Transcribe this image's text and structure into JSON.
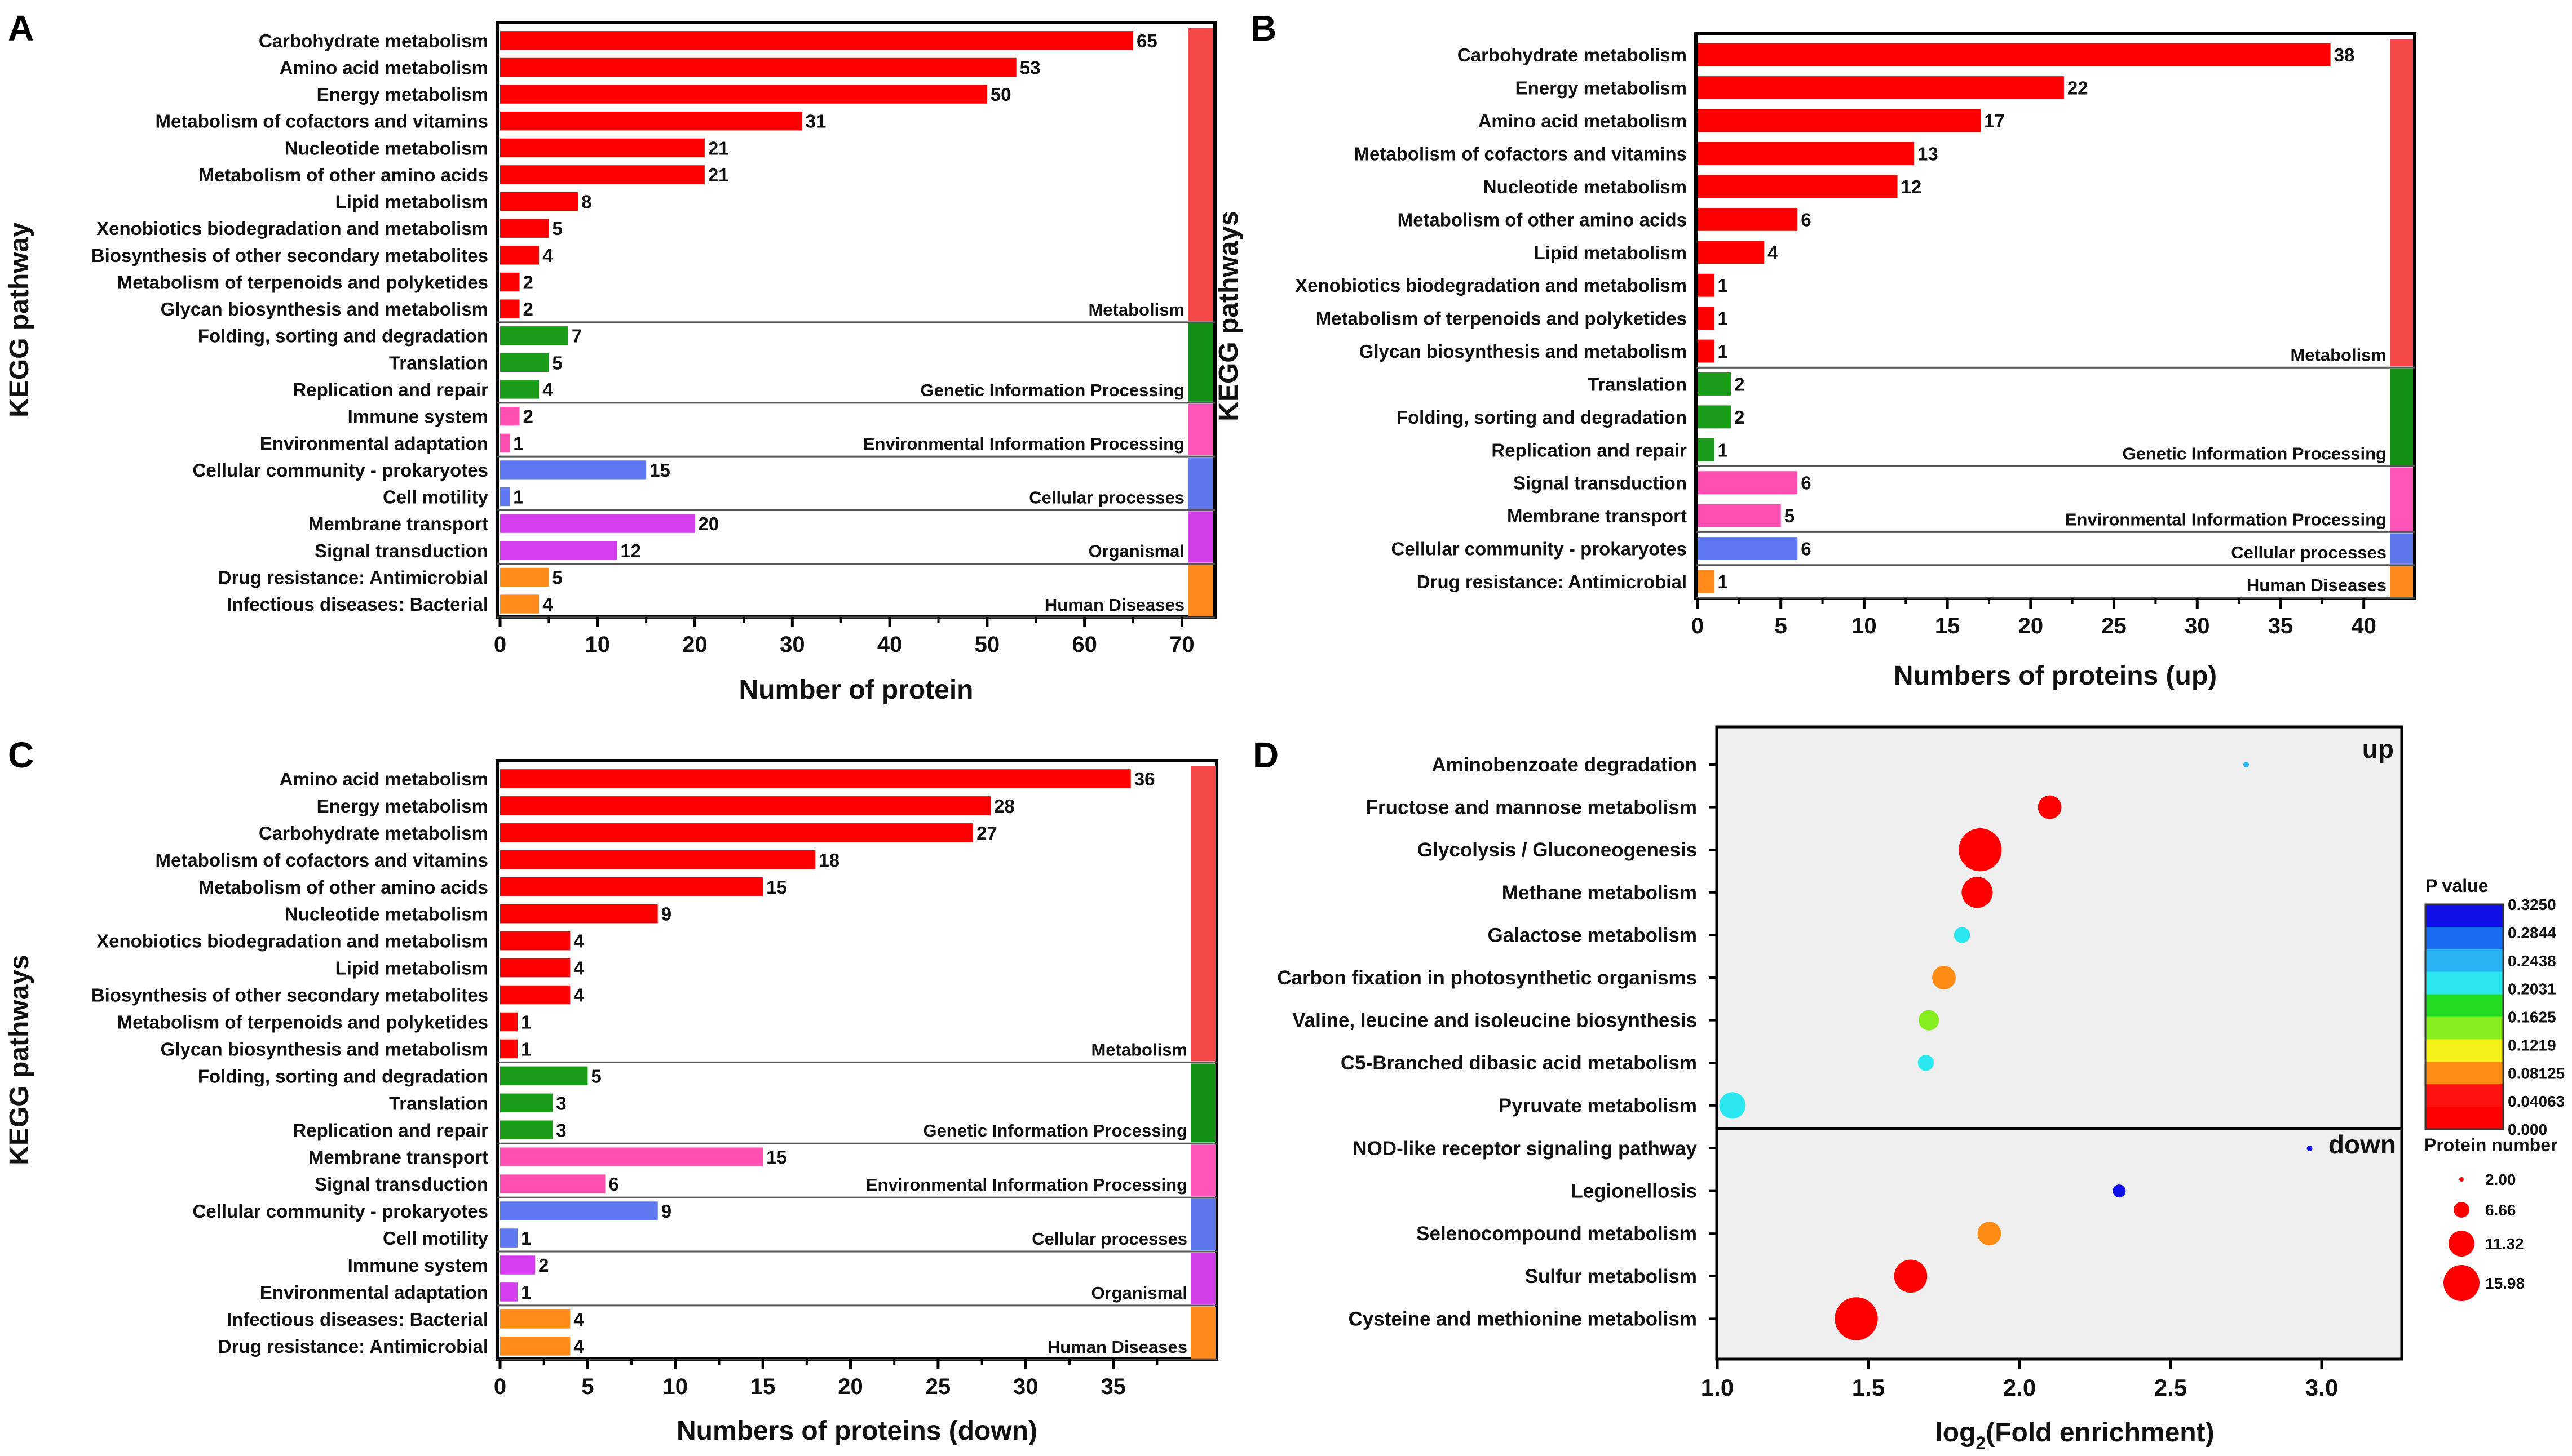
{
  "colors": {
    "Metabolism": "#ff0000",
    "Genetic Information Processing": "#1a9c1a",
    "Environmental Information Processing": "#ff4fb1",
    "Cellular processes": "#5e78f2",
    "Organismal": "#d63ff0",
    "Human Diseases": "#ff8c1a",
    "stripe_Metabolism": "#f64a4a",
    "stripe_Genetic Information Processing": "#139013",
    "stripe_Environmental Information Processing": "#ff55b8",
    "stripe_Cellular processes": "#5d77ea",
    "stripe_Organismal": "#d23ee8",
    "stripe_Human Diseases": "#ff8a1c",
    "dot_panel_bg": "#efefef"
  },
  "chart_data": [
    {
      "panel": "A",
      "type": "bar",
      "orientation": "horizontal",
      "xlabel": "Number of protein",
      "ylabel": "KEGG pathway",
      "xlim": [
        0,
        72
      ],
      "xticks": [
        0,
        10,
        20,
        30,
        40,
        50,
        60,
        70
      ],
      "groups": [
        {
          "name": "Metabolism",
          "items": [
            [
              "Carbohydrate metabolism",
              65
            ],
            [
              "Amino acid metabolism",
              53
            ],
            [
              "Energy metabolism",
              50
            ],
            [
              "Metabolism of cofactors and vitamins",
              31
            ],
            [
              "Nucleotide metabolism",
              21
            ],
            [
              "Metabolism of other amino acids",
              21
            ],
            [
              "Lipid metabolism",
              8
            ],
            [
              "Xenobiotics biodegradation and metabolism",
              5
            ],
            [
              "Biosynthesis of other secondary metabolites",
              4
            ],
            [
              "Metabolism of terpenoids and polyketides",
              2
            ],
            [
              "Glycan biosynthesis and metabolism",
              2
            ]
          ]
        },
        {
          "name": "Genetic Information Processing",
          "items": [
            [
              "Folding, sorting and degradation",
              7
            ],
            [
              "Translation",
              5
            ],
            [
              "Replication and repair",
              4
            ]
          ]
        },
        {
          "name": "Environmental Information Processing",
          "items": [
            [
              "Immune system",
              2
            ],
            [
              "Environmental adaptation",
              1
            ]
          ]
        },
        {
          "name": "Cellular processes",
          "items": [
            [
              "Cellular community - prokaryotes",
              15
            ],
            [
              "Cell motility",
              1
            ]
          ]
        },
        {
          "name": "Organismal",
          "items": [
            [
              "Membrane transport",
              20
            ],
            [
              "Signal transduction",
              12
            ]
          ]
        },
        {
          "name": "Human Diseases",
          "items": [
            [
              "Drug resistance: Antimicrobial",
              5
            ],
            [
              "Infectious diseases: Bacterial",
              4
            ]
          ]
        }
      ]
    },
    {
      "panel": "B",
      "type": "bar",
      "orientation": "horizontal",
      "xlabel": "Numbers of proteins (up)",
      "ylabel": "KEGG pathways",
      "xlim": [
        0,
        41.5
      ],
      "xticks": [
        0,
        5,
        10,
        15,
        20,
        25,
        30,
        35,
        40
      ],
      "groups": [
        {
          "name": "Metabolism",
          "items": [
            [
              "Carbohydrate metabolism",
              38
            ],
            [
              "Energy metabolism",
              22
            ],
            [
              "Amino acid metabolism",
              17
            ],
            [
              "Metabolism of cofactors and vitamins",
              13
            ],
            [
              "Nucleotide metabolism",
              12
            ],
            [
              "Metabolism of other amino acids",
              6
            ],
            [
              "Lipid metabolism",
              4
            ],
            [
              "Xenobiotics biodegradation and metabolism",
              1
            ],
            [
              "Metabolism of terpenoids and polyketides",
              1
            ],
            [
              "Glycan biosynthesis and metabolism",
              1
            ]
          ]
        },
        {
          "name": "Genetic Information Processing",
          "items": [
            [
              "Translation",
              2
            ],
            [
              "Folding, sorting and degradation",
              2
            ],
            [
              "Replication and repair",
              1
            ]
          ]
        },
        {
          "name": "Environmental Information Processing",
          "items": [
            [
              "Signal transduction",
              6
            ],
            [
              "Membrane transport",
              5
            ]
          ]
        },
        {
          "name": "Cellular processes",
          "items": [
            [
              "Cellular community - prokaryotes",
              6
            ]
          ]
        },
        {
          "name": "Human Diseases",
          "items": [
            [
              "Drug resistance: Antimicrobial",
              1
            ]
          ]
        }
      ]
    },
    {
      "panel": "C",
      "type": "bar",
      "orientation": "horizontal",
      "xlabel": "Numbers of proteins (down)",
      "ylabel": "KEGG pathways",
      "xlim": [
        0,
        39
      ],
      "xticks": [
        0,
        5,
        10,
        15,
        20,
        25,
        30,
        35
      ],
      "groups": [
        {
          "name": "Metabolism",
          "items": [
            [
              "Amino acid metabolism",
              36
            ],
            [
              "Energy metabolism",
              28
            ],
            [
              "Carbohydrate metabolism",
              27
            ],
            [
              "Metabolism of cofactors and vitamins",
              18
            ],
            [
              "Metabolism of other amino acids",
              15
            ],
            [
              "Nucleotide metabolism",
              9
            ],
            [
              "Xenobiotics biodegradation and metabolism",
              4
            ],
            [
              "Lipid metabolism",
              4
            ],
            [
              "Biosynthesis of other secondary metabolites",
              4
            ],
            [
              "Metabolism of terpenoids and polyketides",
              1
            ],
            [
              "Glycan biosynthesis and metabolism",
              1
            ]
          ]
        },
        {
          "name": "Genetic Information Processing",
          "items": [
            [
              "Folding, sorting and degradation",
              5
            ],
            [
              "Translation",
              3
            ],
            [
              "Replication and repair",
              3
            ]
          ]
        },
        {
          "name": "Environmental Information Processing",
          "items": [
            [
              "Membrane transport",
              15
            ],
            [
              "Signal transduction",
              6
            ]
          ]
        },
        {
          "name": "Cellular processes",
          "items": [
            [
              "Cellular community - prokaryotes",
              9
            ],
            [
              "Cell motility",
              1
            ]
          ]
        },
        {
          "name": "Organismal",
          "items": [
            [
              "Immune system",
              2
            ],
            [
              "Environmental adaptation",
              1
            ]
          ]
        },
        {
          "name": "Human Diseases",
          "items": [
            [
              "Infectious diseases: Bacterial",
              4
            ],
            [
              "Drug resistance: Antimicrobial",
              4
            ]
          ]
        }
      ]
    },
    {
      "panel": "D",
      "type": "scatter",
      "subtype": "bubble",
      "xlabel": "log2(Fold enrichment)",
      "xlabel_sub": "2",
      "xlabel_pre": "log",
      "xlabel_post": "(Fold enrichment)",
      "xlim": [
        1.0,
        3.25
      ],
      "xticks": [
        "1.0",
        "1.5",
        "2.0",
        "2.5",
        "3.0"
      ],
      "up_label": "up",
      "down_label": "down",
      "up": [
        {
          "name": "Aminobenzoate degradation",
          "x": 2.75,
          "p": 0.26,
          "n": 1
        },
        {
          "name": "Fructose and mannose metabolism",
          "x": 2.1,
          "p": 0.01,
          "n": 4
        },
        {
          "name": "Glycolysis / Gluconeogenesis",
          "x": 1.87,
          "p": 0.0,
          "n": 14
        },
        {
          "name": "Methane metabolism",
          "x": 1.86,
          "p": 0.01,
          "n": 7
        },
        {
          "name": "Galactose metabolism",
          "x": 1.81,
          "p": 0.2,
          "n": 2
        },
        {
          "name": "Carbon fixation in photosynthetic organisms",
          "x": 1.75,
          "p": 0.06,
          "n": 4
        },
        {
          "name": "Valine, leucine and isoleucine biosynthesis",
          "x": 1.7,
          "p": 0.15,
          "n": 3
        },
        {
          "name": "C5-Branched dibasic acid metabolism",
          "x": 1.69,
          "p": 0.2,
          "n": 2
        },
        {
          "name": "Pyruvate metabolism",
          "x": 1.05,
          "p": 0.22,
          "n": 5
        }
      ],
      "down": [
        {
          "name": "NOD-like receptor signaling pathway",
          "x": 2.96,
          "p": 0.32,
          "n": 1
        },
        {
          "name": "Legionellosis",
          "x": 2.33,
          "p": 0.31,
          "n": 1.5
        },
        {
          "name": "Selenocompound metabolism",
          "x": 1.9,
          "p": 0.055,
          "n": 4
        },
        {
          "name": "Sulfur metabolism",
          "x": 1.64,
          "p": 0.005,
          "n": 8
        },
        {
          "name": "Cysteine and methionine metabolism",
          "x": 1.46,
          "p": 0.0,
          "n": 14
        }
      ],
      "legend_p_title": "P value",
      "legend_p_ticks": [
        "0.3250",
        "0.2844",
        "0.2438",
        "0.2031",
        "0.1625",
        "0.1219",
        "0.08125",
        "0.04063",
        "0.000"
      ],
      "legend_p_colors": [
        "#1010e8",
        "#1a6cf0",
        "#28b4f4",
        "#2be8f0",
        "#22dc22",
        "#86ee1e",
        "#f4f018",
        "#ff8c14",
        "#ff1010",
        "#ff0000"
      ],
      "legend_size_title": "Protein number",
      "legend_sizes": [
        "2.00",
        "6.66",
        "11.32",
        "15.98"
      ]
    }
  ],
  "panel_letters": [
    "A",
    "B",
    "C",
    "D"
  ]
}
